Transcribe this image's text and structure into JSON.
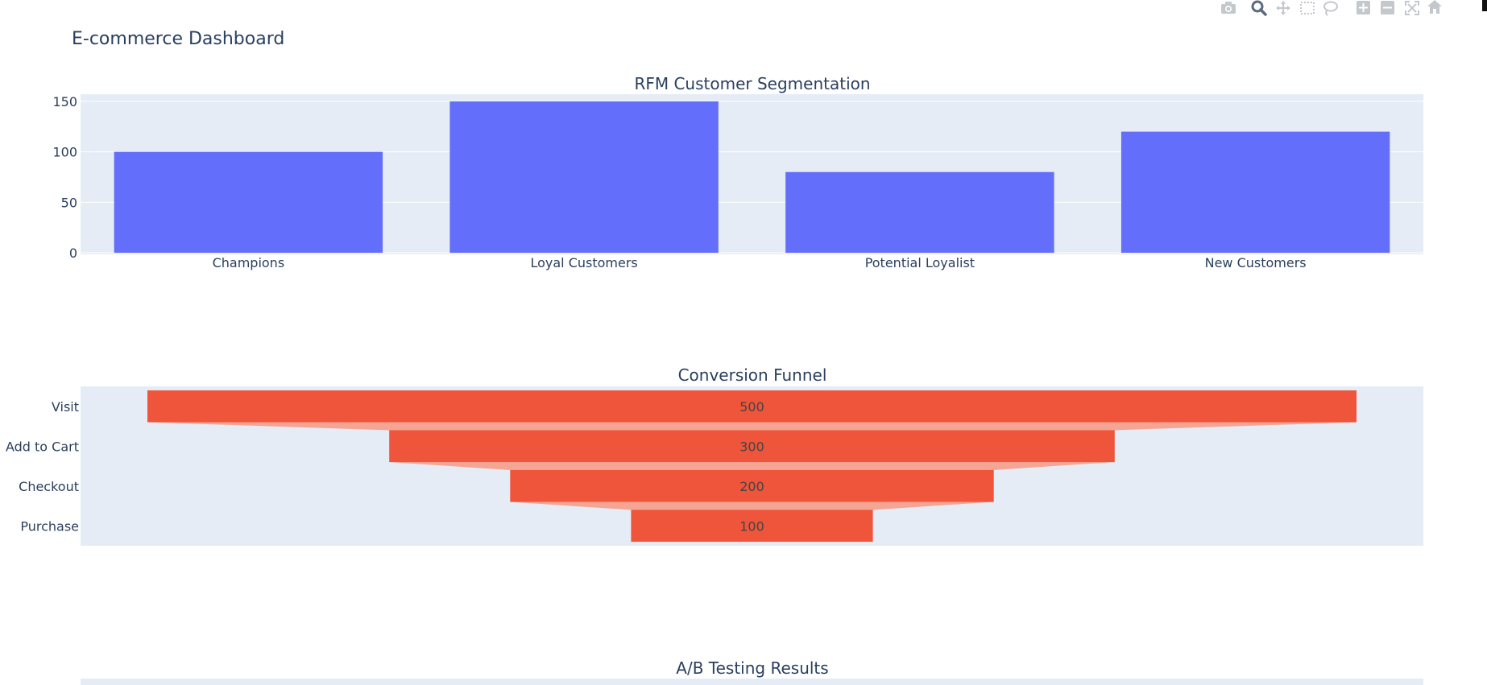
{
  "page": {
    "title": "E-commerce Dashboard"
  },
  "modebar": [
    {
      "name": "camera-icon",
      "label": "Download plot as a png"
    },
    {
      "name": "zoom-icon",
      "label": "Zoom"
    },
    {
      "name": "pan-icon",
      "label": "Pan"
    },
    {
      "name": "box-select-icon",
      "label": "Box Select"
    },
    {
      "name": "lasso-select-icon",
      "label": "Lasso Select"
    },
    {
      "name": "zoom-in-icon",
      "label": "Zoom in"
    },
    {
      "name": "zoom-out-icon",
      "label": "Zoom out"
    },
    {
      "name": "autoscale-icon",
      "label": "Autoscale"
    },
    {
      "name": "reset-axes-icon",
      "label": "Reset axes"
    }
  ],
  "colors": {
    "plot_bg": "#e5ecf6",
    "paper_bg": "#ffffff",
    "bar": "#636efa",
    "funnel": "#ef553b",
    "connector": "#f4a594",
    "text": "#2a3f5f",
    "grid": "#ffffff"
  },
  "chart_data": [
    {
      "type": "bar",
      "title": "RFM Customer Segmentation",
      "categories": [
        "Champions",
        "Loyal Customers",
        "Potential Loyalist",
        "New Customers"
      ],
      "values": [
        100,
        150,
        80,
        120
      ],
      "ylim": [
        0,
        150
      ],
      "yticks": [
        0,
        50,
        100,
        150
      ],
      "grid": true
    },
    {
      "type": "funnel",
      "title": "Conversion Funnel",
      "categories": [
        "Visit",
        "Add to Cart",
        "Checkout",
        "Purchase"
      ],
      "values": [
        500,
        300,
        200,
        100
      ]
    },
    {
      "type": "bar",
      "title": "A/B Testing Results"
    }
  ]
}
